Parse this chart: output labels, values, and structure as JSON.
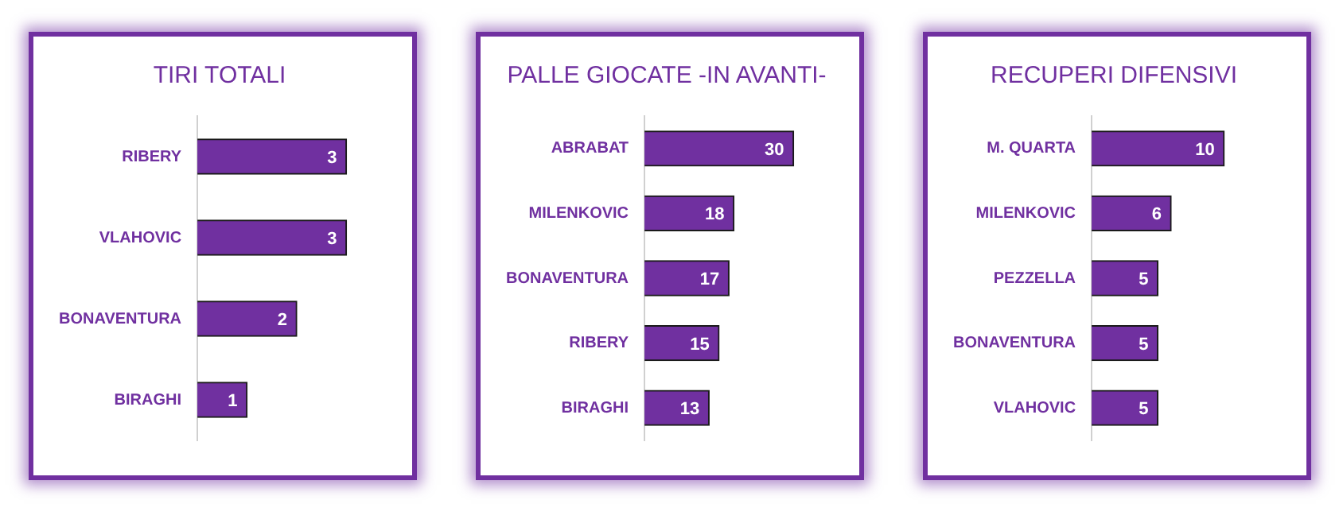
{
  "chart_data": [
    {
      "type": "bar",
      "orientation": "horizontal",
      "title": "TIRI TOTALI",
      "categories": [
        "RIBERY",
        "VLAHOVIC",
        "BONAVENTURA",
        "BIRAGHI"
      ],
      "values": [
        3,
        3,
        2,
        1
      ],
      "color": "#7030a0",
      "data_labels": true,
      "grid": false,
      "legend": false
    },
    {
      "type": "bar",
      "orientation": "horizontal",
      "title": "PALLE GIOCATE -IN AVANTI-",
      "categories": [
        "ABRABAT",
        "MILENKOVIC",
        "BONAVENTURA",
        "RIBERY",
        "BIRAGHI"
      ],
      "values": [
        30,
        18,
        17,
        15,
        13
      ],
      "color": "#7030a0",
      "data_labels": true,
      "grid": false,
      "legend": false
    },
    {
      "type": "bar",
      "orientation": "horizontal",
      "title": "RECUPERI DIFENSIVI",
      "categories": [
        "M. QUARTA",
        "MILENKOVIC",
        "PEZZELLA",
        "BONAVENTURA",
        "VLAHOVIC"
      ],
      "values": [
        10,
        6,
        5,
        5,
        5
      ],
      "color": "#7030a0",
      "data_labels": true,
      "grid": false,
      "legend": false
    }
  ]
}
